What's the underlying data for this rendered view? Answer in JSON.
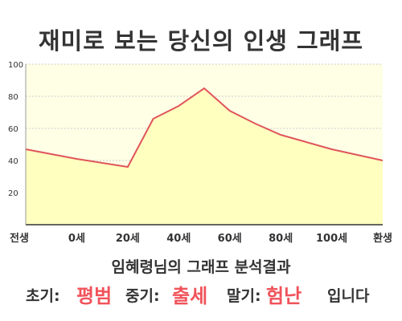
{
  "title": "재미로 보는 당신의 인생 그래프",
  "chart_data": {
    "type": "area",
    "x_labels": [
      "전생",
      "0세",
      "20세",
      "40세",
      "60세",
      "80세",
      "100세",
      "환생"
    ],
    "points": [
      {
        "age": -20,
        "value": 47
      },
      {
        "age": 0,
        "value": 41
      },
      {
        "age": 20,
        "value": 36
      },
      {
        "age": 30,
        "value": 66
      },
      {
        "age": 40,
        "value": 74
      },
      {
        "age": 50,
        "value": 85
      },
      {
        "age": 60,
        "value": 71
      },
      {
        "age": 70,
        "value": 63
      },
      {
        "age": 80,
        "value": 56
      },
      {
        "age": 100,
        "value": 47
      },
      {
        "age": 120,
        "value": 40
      }
    ],
    "y_ticks": [
      20,
      40,
      60,
      80,
      100
    ],
    "ylim": [
      0,
      100
    ],
    "grid": true,
    "line_color": "#e0555b",
    "fill_color": "#ffffc0"
  },
  "result": {
    "title": "임혜령님의 그래프 분석결과",
    "early_label": "초기:",
    "early_value": "평범",
    "mid_label": "중기:",
    "mid_value": "출세",
    "late_label": "말기:",
    "late_value": "험난",
    "suffix": "입니다"
  },
  "colors": {
    "highlight": "#f0535a",
    "plot_background": "#ffffe6",
    "grid": "#cccccc",
    "text": "#333333"
  }
}
